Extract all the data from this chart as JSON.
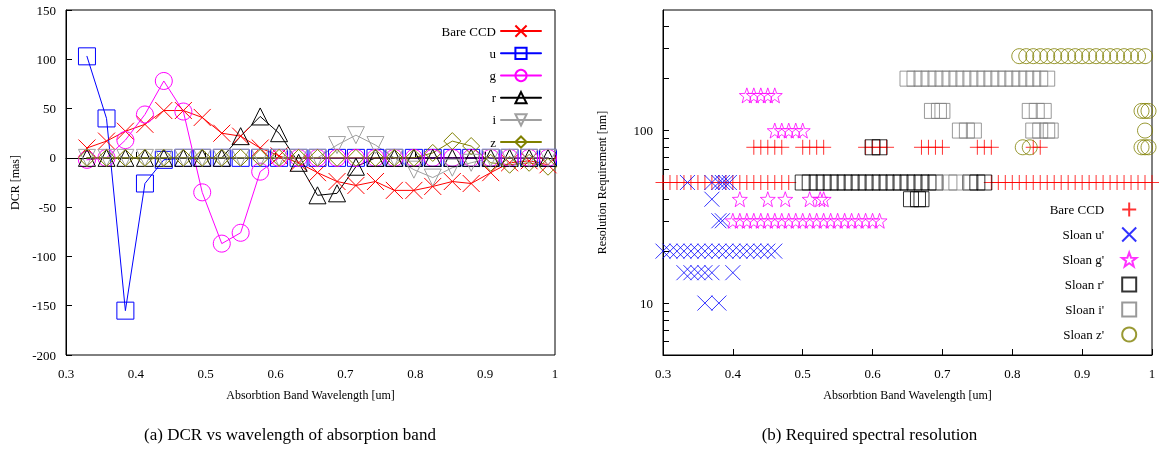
{
  "chart_data": [
    {
      "type": "line",
      "title": "(a) DCR vs wavelength of absorption band",
      "xlabel": "Absorbtion Band Wavelength [um]",
      "ylabel": "DCR [mas]",
      "xlim": [
        0.3,
        1
      ],
      "xticks": [
        0.3,
        0.4,
        0.5,
        0.6,
        0.7,
        0.8,
        0.9,
        1
      ],
      "ylim": [
        -200,
        150
      ],
      "yticks": [
        -200,
        -150,
        -100,
        -50,
        0,
        50,
        100,
        150
      ],
      "legend": "top right",
      "line_style": "solid",
      "x": [
        0.33,
        0.358,
        0.385,
        0.413,
        0.44,
        0.468,
        0.495,
        0.523,
        0.55,
        0.578,
        0.605,
        0.633,
        0.66,
        0.688,
        0.715,
        0.743,
        0.77,
        0.798,
        0.825,
        0.853,
        0.88,
        0.908,
        0.935,
        0.963,
        0.99
      ],
      "series": [
        {
          "name": "Bare CCD",
          "color": "#ff0000",
          "marker": "cross",
          "values": [
            10,
            17,
            27,
            34,
            48,
            48,
            41,
            25,
            22,
            10,
            2,
            -5,
            -15,
            -24,
            -28,
            -24,
            -33,
            -33,
            -29,
            -24,
            -26,
            -15,
            -5,
            -3,
            -7
          ]
        },
        {
          "name": "u",
          "color": "#0000ff",
          "marker": "square",
          "values": [
            103,
            40,
            -155,
            -26,
            -2,
            0,
            0,
            0,
            0,
            0,
            0,
            0,
            0,
            0,
            0,
            0,
            0,
            0,
            0,
            0,
            0,
            0,
            0,
            0,
            0
          ]
        },
        {
          "name": "g",
          "color": "#ff00ff",
          "marker": "circle",
          "values": [
            -2,
            0,
            18,
            44,
            78,
            47,
            -35,
            -87,
            -76,
            -14,
            0,
            0,
            0,
            0,
            0,
            0,
            0,
            0,
            0,
            0,
            0,
            0,
            0,
            0,
            0
          ]
        },
        {
          "name": "r",
          "color": "#000000",
          "marker": "triangle",
          "values": [
            0,
            0,
            0,
            0,
            0,
            0,
            0,
            0,
            22,
            42,
            25,
            -5,
            -38,
            -36,
            -9,
            0,
            0,
            0,
            0,
            0,
            0,
            0,
            0,
            0,
            0
          ]
        },
        {
          "name": "i",
          "color": "#a0a0a0",
          "marker": "triangle_down",
          "values": [
            0,
            0,
            0,
            0,
            0,
            0,
            0,
            0,
            0,
            0,
            0,
            0,
            0,
            13,
            23,
            13,
            0,
            -12,
            -20,
            -10,
            -5,
            0,
            0,
            0,
            0
          ]
        },
        {
          "name": "z",
          "color": "#808000",
          "marker": "diamond",
          "values": [
            0,
            0,
            0,
            0,
            0,
            0,
            0,
            0,
            0,
            0,
            0,
            0,
            0,
            0,
            0,
            0,
            0,
            0,
            5,
            17,
            12,
            -5,
            -7,
            -5,
            -9
          ]
        }
      ]
    },
    {
      "type": "scatter",
      "title": "(b) Required spectral resolution",
      "xlabel": "Absorbtion Band Wavelength [um]",
      "ylabel": "Resolution Requirement [nm]",
      "xlim": [
        0.3,
        1
      ],
      "xticks": [
        0.3,
        0.4,
        0.5,
        0.6,
        0.7,
        0.8,
        0.9,
        1
      ],
      "ylim": [
        5,
        500
      ],
      "log": "y",
      "yticks": [
        {
          "value": 6,
          "label": null
        },
        {
          "value": 7,
          "label": null
        },
        {
          "value": 8,
          "label": null
        },
        {
          "value": 9,
          "label": null
        },
        10,
        {
          "value": 20,
          "label": null
        },
        {
          "value": 30,
          "label": null
        },
        {
          "value": 40,
          "label": null
        },
        {
          "value": 50,
          "label": null
        },
        {
          "value": 60,
          "label": null
        },
        {
          "value": 70,
          "label": null
        },
        {
          "value": 80,
          "label": null
        },
        {
          "value": 90,
          "label": null
        },
        100,
        {
          "value": 200,
          "label": null
        },
        {
          "value": 300,
          "label": null
        },
        {
          "value": 400,
          "label": null
        }
      ],
      "legend": "bottom right",
      "series": [
        {
          "name": "Bare CCD",
          "color": "#ff0000",
          "marker": "plus",
          "x": [
            0.3,
            0.31,
            0.32,
            0.33,
            0.34,
            0.35,
            0.36,
            0.37,
            0.38,
            0.39,
            0.4,
            0.41,
            0.42,
            0.43,
            0.44,
            0.45,
            0.46,
            0.47,
            0.48,
            0.77,
            0.78,
            0.79,
            0.8,
            0.81,
            0.82,
            0.83,
            0.84,
            0.85,
            0.86,
            0.87,
            0.88,
            0.89,
            0.9,
            0.91,
            0.92,
            0.93,
            0.94,
            0.95,
            0.96,
            0.97,
            0.98,
            0.99,
            1,
            0.43,
            0.44,
            0.45,
            0.46,
            0.47,
            0.5,
            0.51,
            0.52,
            0.53,
            0.59,
            0.6,
            0.61,
            0.62,
            0.67,
            0.68,
            0.69,
            0.7,
            0.75,
            0.76,
            0.77,
            0.83,
            0.84
          ],
          "values": [
            50,
            50,
            50,
            50,
            50,
            50,
            50,
            50,
            50,
            50,
            50,
            50,
            50,
            50,
            50,
            50,
            50,
            50,
            50,
            50,
            50,
            50,
            50,
            50,
            50,
            50,
            50,
            50,
            50,
            50,
            50,
            50,
            50,
            50,
            50,
            50,
            50,
            50,
            50,
            50,
            50,
            50,
            50,
            80,
            80,
            80,
            80,
            80,
            80,
            80,
            80,
            80,
            80,
            80,
            80,
            80,
            80,
            80,
            80,
            80,
            80,
            80,
            80,
            80,
            80
          ]
        },
        {
          "name": "Sloan u'",
          "color": "#0000ff",
          "marker": "cross",
          "x": [
            0.335,
            0.37,
            0.38,
            0.385,
            0.39,
            0.395,
            0.37,
            0.38,
            0.385,
            0.3,
            0.31,
            0.32,
            0.33,
            0.34,
            0.35,
            0.36,
            0.37,
            0.38,
            0.39,
            0.4,
            0.41,
            0.42,
            0.43,
            0.44,
            0.45,
            0.46,
            0.33,
            0.34,
            0.35,
            0.36,
            0.37,
            0.4,
            0.36,
            0.38
          ],
          "values": [
            50,
            50,
            50,
            50,
            50,
            50,
            40,
            30,
            30,
            20,
            20,
            20,
            20,
            20,
            20,
            20,
            20,
            20,
            20,
            20,
            20,
            20,
            20,
            20,
            20,
            20,
            15,
            15,
            15,
            15,
            15,
            15,
            10,
            10
          ]
        },
        {
          "name": "Sloan g'",
          "color": "#ff00ff",
          "marker": "star",
          "x": [
            0.42,
            0.43,
            0.44,
            0.45,
            0.46,
            0.46,
            0.47,
            0.48,
            0.49,
            0.5,
            0.41,
            0.45,
            0.475,
            0.51,
            0.525,
            0.53,
            0.4,
            0.41,
            0.42,
            0.43,
            0.44,
            0.45,
            0.46,
            0.47,
            0.48,
            0.49,
            0.5,
            0.51,
            0.52,
            0.53,
            0.54,
            0.55,
            0.56,
            0.57,
            0.58,
            0.59,
            0.6,
            0.61
          ],
          "values": [
            160,
            160,
            160,
            160,
            160,
            100,
            100,
            100,
            100,
            100,
            40,
            40,
            40,
            40,
            40,
            40,
            30,
            30,
            30,
            30,
            30,
            30,
            30,
            30,
            30,
            30,
            30,
            30,
            30,
            30,
            30,
            30,
            30,
            30,
            30,
            30,
            30,
            30
          ]
        },
        {
          "name": "Sloan r'",
          "color": "#000000",
          "marker": "square",
          "x": [
            0.5,
            0.51,
            0.52,
            0.53,
            0.54,
            0.55,
            0.56,
            0.57,
            0.58,
            0.59,
            0.6,
            0.61,
            0.62,
            0.63,
            0.64,
            0.65,
            0.66,
            0.67,
            0.68,
            0.69,
            0.74,
            0.75,
            0.76,
            0.6,
            0.61,
            0.655,
            0.665,
            0.67
          ],
          "values": [
            50,
            50,
            50,
            50,
            50,
            50,
            50,
            50,
            50,
            50,
            50,
            50,
            50,
            50,
            50,
            50,
            50,
            50,
            50,
            50,
            50,
            50,
            50,
            80,
            80,
            40,
            40,
            40
          ]
        },
        {
          "name": "Sloan i'",
          "color": "#808080",
          "marker": "square",
          "x": [
            0.65,
            0.66,
            0.67,
            0.68,
            0.69,
            0.7,
            0.71,
            0.72,
            0.73,
            0.74,
            0.75,
            0.76,
            0.77,
            0.78,
            0.79,
            0.8,
            0.81,
            0.82,
            0.83,
            0.84,
            0.85,
            0.685,
            0.695,
            0.7,
            0.825,
            0.835,
            0.845,
            0.725,
            0.735,
            0.745,
            0.83,
            0.84,
            0.85,
            0.855,
            0.71,
            0.72
          ],
          "values": [
            200,
            200,
            200,
            200,
            200,
            200,
            200,
            200,
            200,
            200,
            200,
            200,
            200,
            200,
            200,
            200,
            200,
            200,
            200,
            200,
            200,
            130,
            130,
            130,
            130,
            130,
            130,
            100,
            100,
            100,
            100,
            100,
            100,
            100,
            50,
            50
          ]
        },
        {
          "name": "Sloan z'",
          "color": "#808000",
          "marker": "circle",
          "x": [
            0.81,
            0.82,
            0.83,
            0.84,
            0.85,
            0.86,
            0.87,
            0.88,
            0.89,
            0.9,
            0.91,
            0.92,
            0.93,
            0.94,
            0.95,
            0.96,
            0.97,
            0.98,
            0.99,
            0.985,
            0.99,
            0.995,
            0.99,
            0.815,
            0.825,
            0.985,
            0.99,
            0.995
          ],
          "values": [
            270,
            270,
            270,
            270,
            270,
            270,
            270,
            270,
            270,
            270,
            270,
            270,
            270,
            270,
            270,
            270,
            270,
            270,
            270,
            130,
            130,
            130,
            100,
            80,
            80,
            80,
            80,
            80
          ]
        }
      ]
    }
  ]
}
